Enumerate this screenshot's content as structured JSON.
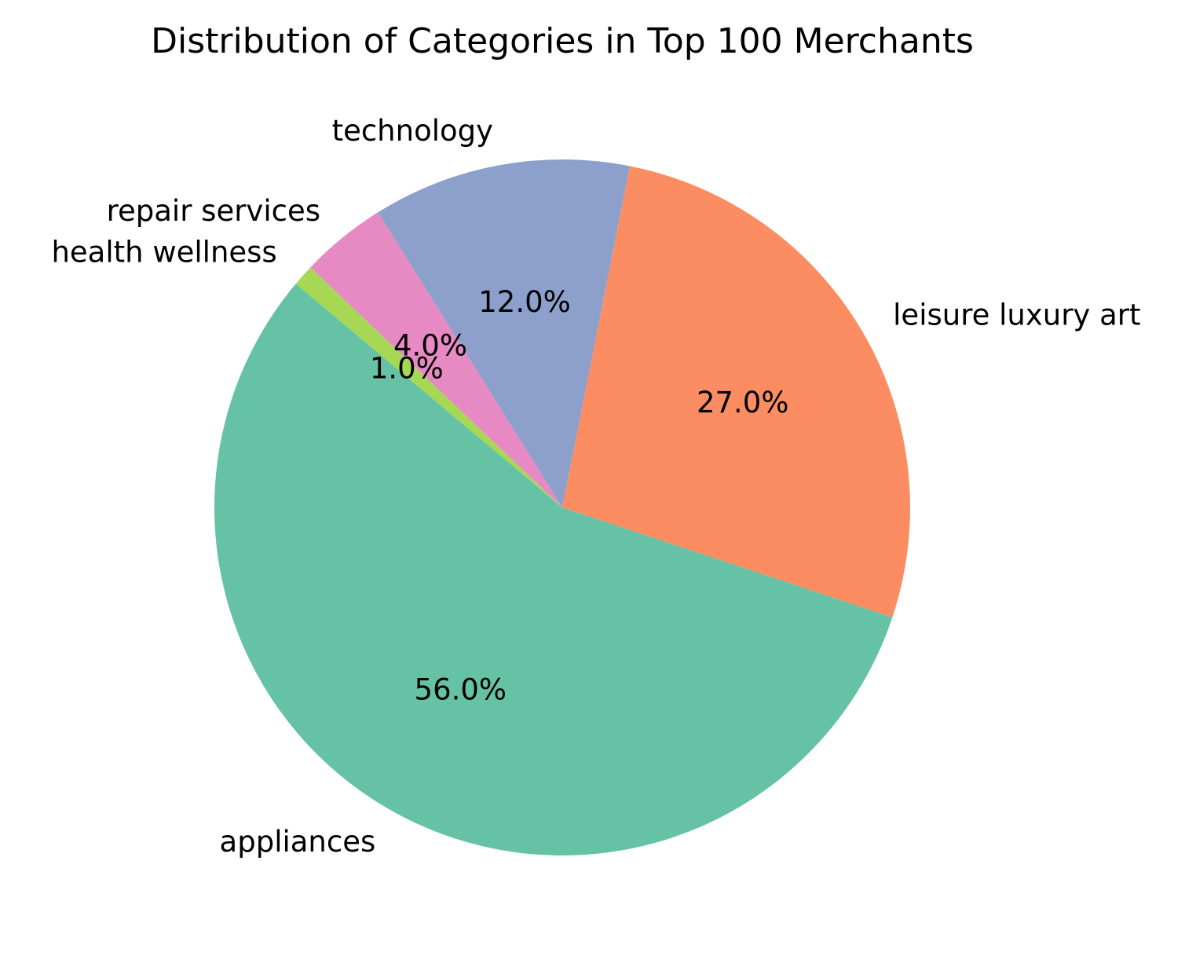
{
  "chart_data": {
    "type": "pie",
    "title": "Distribution of Categories in Top 100 Merchants",
    "start_angle_deg": 140,
    "direction": "counterclockwise",
    "slices": [
      {
        "label": "appliances",
        "value": 56.0,
        "pct_label": "56.0%",
        "color": "#66c2a5"
      },
      {
        "label": "leisure luxury art",
        "value": 27.0,
        "pct_label": "27.0%",
        "color": "#fc8d62"
      },
      {
        "label": "technology",
        "value": 12.0,
        "pct_label": "12.0%",
        "color": "#8da0cb"
      },
      {
        "label": "repair services",
        "value": 4.0,
        "pct_label": "4.0%",
        "color": "#e78ac3"
      },
      {
        "label": "health wellness",
        "value": 1.0,
        "pct_label": "1.0%",
        "color": "#a6d854"
      }
    ]
  }
}
